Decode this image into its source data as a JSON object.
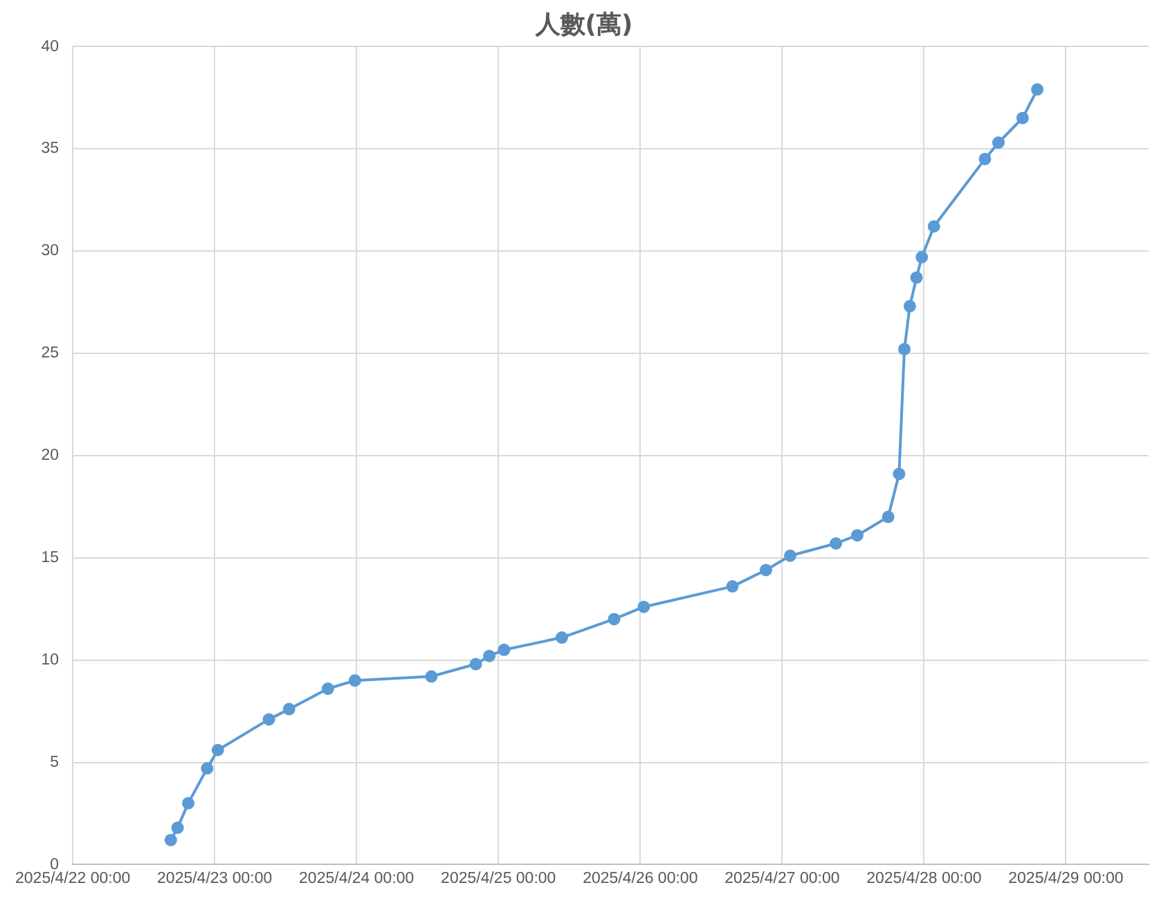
{
  "chart_data": {
    "type": "line",
    "title": "人數(萬)",
    "x": [
      "2025-04-22T16:35",
      "2025-04-22T17:44",
      "2025-04-22T19:32",
      "2025-04-22T22:44",
      "2025-04-23T00:33",
      "2025-04-23T09:11",
      "2025-04-23T12:36",
      "2025-04-23T19:10",
      "2025-04-23T23:44",
      "2025-04-24T12:40",
      "2025-04-24T20:11",
      "2025-04-24T22:28",
      "2025-04-25T00:58",
      "2025-04-25T10:44",
      "2025-04-25T19:35",
      "2025-04-26T00:36",
      "2025-04-26T15:36",
      "2025-04-26T21:16",
      "2025-04-27T01:22",
      "2025-04-27T09:06",
      "2025-04-27T12:43",
      "2025-04-27T17:57",
      "2025-04-27T19:47",
      "2025-04-27T20:41",
      "2025-04-27T21:36",
      "2025-04-27T22:44",
      "2025-04-27T23:38",
      "2025-04-28T01:41",
      "2025-04-28T10:19",
      "2025-04-28T12:36",
      "2025-04-28T16:41",
      "2025-04-28T19:10"
    ],
    "series": [
      {
        "color": "#5b9bd5",
        "values": [
          1.2,
          1.8,
          3.0,
          4.7,
          5.6,
          7.1,
          7.6,
          8.6,
          9.0,
          9.2,
          9.8,
          10.2,
          10.5,
          11.1,
          12.0,
          12.6,
          13.6,
          14.4,
          15.1,
          15.7,
          16.1,
          17.0,
          19.1,
          25.2,
          27.3,
          28.7,
          29.7,
          31.2,
          34.5,
          35.3,
          36.5,
          37.9
        ]
      }
    ],
    "xlim": [
      "2025-04-22T00:00",
      "2025-04-29T14:00"
    ],
    "xticks": [
      {
        "value": "2025-04-22T00:00",
        "label": "2025/4/22 00:00"
      },
      {
        "value": "2025-04-23T00:00",
        "label": "2025/4/23 00:00"
      },
      {
        "value": "2025-04-24T00:00",
        "label": "2025/4/24 00:00"
      },
      {
        "value": "2025-04-25T00:00",
        "label": "2025/4/25 00:00"
      },
      {
        "value": "2025-04-26T00:00",
        "label": "2025/4/26 00:00"
      },
      {
        "value": "2025-04-27T00:00",
        "label": "2025/4/27 00:00"
      },
      {
        "value": "2025-04-28T00:00",
        "label": "2025/4/28 00:00"
      },
      {
        "value": "2025-04-29T00:00",
        "label": "2025/4/29 00:00"
      }
    ],
    "ylim": [
      0,
      40
    ],
    "yticks": [
      0,
      5,
      10,
      15,
      20,
      25,
      30,
      35,
      40
    ],
    "grid": true,
    "legend": false,
    "marker": "circle",
    "line_style": "solid"
  }
}
